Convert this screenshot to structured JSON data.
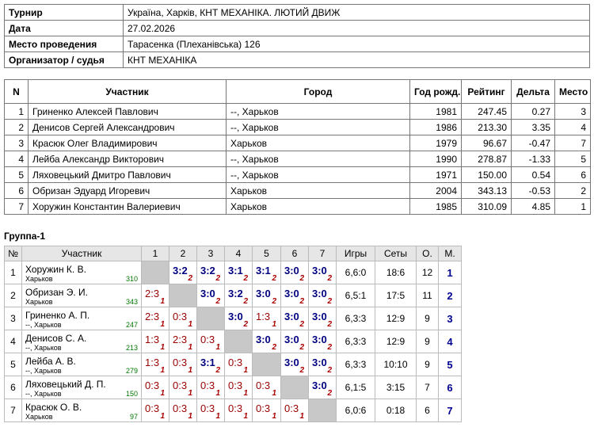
{
  "info": {
    "rows": [
      [
        "Турнир",
        "Україна, Харків, КНТ МЕХАНІКА. ЛЮТИЙ ДВИЖ"
      ],
      [
        "Дата",
        "27.02.2026"
      ],
      [
        "Место проведения",
        "Тарасенка (Плеханівська) 126"
      ],
      [
        "Организатор / судья",
        "КНТ МЕХАНІКА"
      ]
    ]
  },
  "participants": {
    "header": [
      "N",
      "Участник",
      "Город",
      "Год рожд.",
      "Рейтинг",
      "Дельта",
      "Место"
    ],
    "rows": [
      [
        "1",
        "Гриненко Алексей Павлович",
        "--, Харьков",
        "1981",
        "247.45",
        "0.27",
        "3"
      ],
      [
        "2",
        "Денисов Сергей Александрович",
        "--, Харьков",
        "1986",
        "213.30",
        "3.35",
        "4"
      ],
      [
        "3",
        "Красюк Олег Владимирович",
        "Харьков",
        "1979",
        "96.67",
        "-0.47",
        "7"
      ],
      [
        "4",
        "Лейба Александр Викторович",
        "--, Харьков",
        "1990",
        "278.87",
        "-1.33",
        "5"
      ],
      [
        "5",
        "Ляховецький Дмитро Павлович",
        "--, Харьков",
        "1971",
        "150.00",
        "0.54",
        "6"
      ],
      [
        "6",
        "Обризан Эдуард Игоревич",
        "Харьков",
        "2004",
        "343.13",
        "-0.53",
        "2"
      ],
      [
        "7",
        "Хоружин Константин Валериевич",
        "Харьков",
        "1985",
        "310.09",
        "4.85",
        "1"
      ]
    ]
  },
  "group": {
    "title": "Группа-1",
    "header": [
      "№",
      "Участник",
      "1",
      "2",
      "3",
      "4",
      "5",
      "6",
      "7",
      "Игры",
      "Сеты",
      "О.",
      "М."
    ],
    "rows": [
      {
        "n": "1",
        "name": "Хоружин К. В.",
        "city": "Харьков",
        "rating": "310",
        "results": [
          null,
          {
            "score": "3:2",
            "points": "2"
          },
          {
            "score": "3:2",
            "points": "2"
          },
          {
            "score": "3:1",
            "points": "2"
          },
          {
            "score": "3:1",
            "points": "2"
          },
          {
            "score": "3:0",
            "points": "2"
          },
          {
            "score": "3:0",
            "points": "2"
          }
        ],
        "games": "6,6:0",
        "sets": "18:6",
        "points": "12",
        "place": "1"
      },
      {
        "n": "2",
        "name": "Обризан Э. И.",
        "city": "Харьков",
        "rating": "343",
        "results": [
          {
            "score": "2:3",
            "points": "1"
          },
          null,
          {
            "score": "3:0",
            "points": "2"
          },
          {
            "score": "3:2",
            "points": "2"
          },
          {
            "score": "3:0",
            "points": "2"
          },
          {
            "score": "3:0",
            "points": "2"
          },
          {
            "score": "3:0",
            "points": "2"
          }
        ],
        "games": "6,5:1",
        "sets": "17:5",
        "points": "11",
        "place": "2"
      },
      {
        "n": "3",
        "name": "Гриненко А. П.",
        "city": "--, Харьков",
        "rating": "247",
        "results": [
          {
            "score": "2:3",
            "points": "1"
          },
          {
            "score": "0:3",
            "points": "1"
          },
          null,
          {
            "score": "3:0",
            "points": "2"
          },
          {
            "score": "1:3",
            "points": "1"
          },
          {
            "score": "3:0",
            "points": "2"
          },
          {
            "score": "3:0",
            "points": "2"
          }
        ],
        "games": "6,3:3",
        "sets": "12:9",
        "points": "9",
        "place": "3"
      },
      {
        "n": "4",
        "name": "Денисов С. А.",
        "city": "--, Харьков",
        "rating": "213",
        "results": [
          {
            "score": "1:3",
            "points": "1"
          },
          {
            "score": "2:3",
            "points": "1"
          },
          {
            "score": "0:3",
            "points": "1"
          },
          null,
          {
            "score": "3:0",
            "points": "2"
          },
          {
            "score": "3:0",
            "points": "2"
          },
          {
            "score": "3:0",
            "points": "2"
          }
        ],
        "games": "6,3:3",
        "sets": "12:9",
        "points": "9",
        "place": "4"
      },
      {
        "n": "5",
        "name": "Лейба А. В.",
        "city": "--, Харьков",
        "rating": "279",
        "results": [
          {
            "score": "1:3",
            "points": "1"
          },
          {
            "score": "0:3",
            "points": "1"
          },
          {
            "score": "3:1",
            "points": "2"
          },
          {
            "score": "0:3",
            "points": "1"
          },
          null,
          {
            "score": "3:0",
            "points": "2"
          },
          {
            "score": "3:0",
            "points": "2"
          }
        ],
        "games": "6,3:3",
        "sets": "10:10",
        "points": "9",
        "place": "5"
      },
      {
        "n": "6",
        "name": "Ляховецький Д. П.",
        "city": "--, Харьков",
        "rating": "150",
        "results": [
          {
            "score": "0:3",
            "points": "1"
          },
          {
            "score": "0:3",
            "points": "1"
          },
          {
            "score": "0:3",
            "points": "1"
          },
          {
            "score": "0:3",
            "points": "1"
          },
          {
            "score": "0:3",
            "points": "1"
          },
          null,
          {
            "score": "3:0",
            "points": "2"
          }
        ],
        "games": "6,1:5",
        "sets": "3:15",
        "points": "7",
        "place": "6"
      },
      {
        "n": "7",
        "name": "Красюк О. В.",
        "city": "Харьков",
        "rating": "97",
        "results": [
          {
            "score": "0:3",
            "points": "1"
          },
          {
            "score": "0:3",
            "points": "1"
          },
          {
            "score": "0:3",
            "points": "1"
          },
          {
            "score": "0:3",
            "points": "1"
          },
          {
            "score": "0:3",
            "points": "1"
          },
          {
            "score": "0:3",
            "points": "1"
          },
          null
        ],
        "games": "6,0:6",
        "sets": "0:18",
        "points": "6",
        "place": "7"
      }
    ]
  }
}
